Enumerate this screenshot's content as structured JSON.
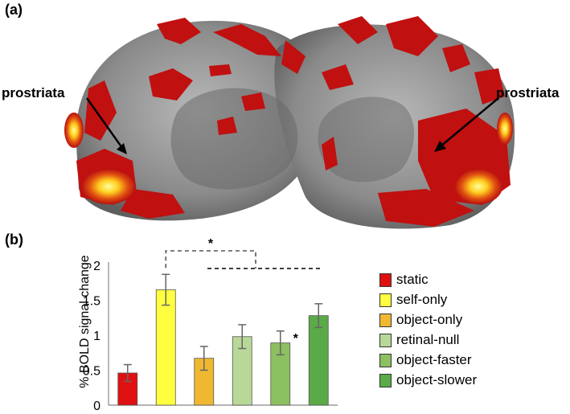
{
  "panel_a": {
    "label": "(a)",
    "annotations": [
      "prostriata",
      "prostriata"
    ]
  },
  "panel_b": {
    "label": "(b)"
  },
  "chart_data": {
    "type": "bar",
    "title": "",
    "xlabel": "",
    "ylabel": "% BOLD signal change",
    "ylim": [
      0,
      2
    ],
    "yticks": [
      "0",
      "0.5",
      "1",
      "1.5",
      "2"
    ],
    "categories": [
      "static",
      "self-only",
      "object-only",
      "retinal-null",
      "object-faster",
      "object-slower"
    ],
    "values": [
      0.46,
      1.65,
      0.67,
      0.98,
      0.89,
      1.28
    ],
    "errors": [
      0.12,
      0.22,
      0.17,
      0.17,
      0.17,
      0.17
    ],
    "colors": [
      "#e01010",
      "#ffff40",
      "#f0b830",
      "#b8d898",
      "#8cc060",
      "#5aaa48"
    ],
    "grid": false,
    "legend_position": "right",
    "significance": [
      {
        "label": "*",
        "description": "bracket between self-only and group"
      },
      {
        "label": "*",
        "description": "marker near object-faster"
      }
    ]
  }
}
